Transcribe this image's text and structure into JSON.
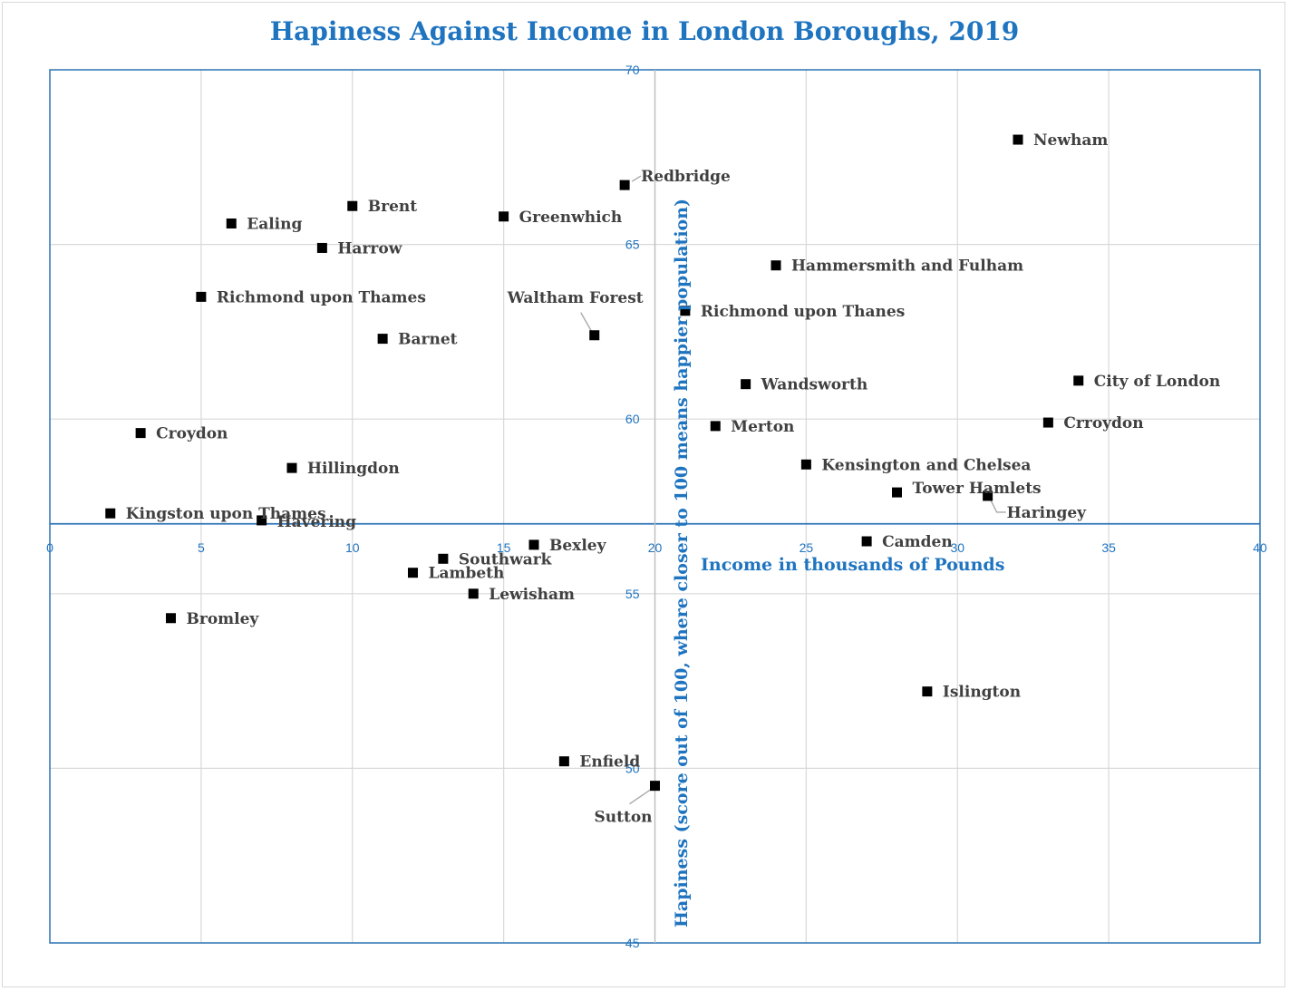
{
  "chart_data": {
    "type": "scatter",
    "title": "Hapiness Against Income in London Boroughs, 2019",
    "xlabel": "Income in thousands of Pounds",
    "ylabel": "Hapiness (score out of 100, where closer to 100 means happier population)",
    "xlim": [
      0,
      40
    ],
    "ylim": [
      45,
      70
    ],
    "x_ticks": [
      "0",
      "5",
      "10",
      "15",
      "20",
      "25",
      "30",
      "35",
      "40"
    ],
    "y_ticks": [
      "45",
      "50",
      "55",
      "60",
      "65",
      "70"
    ],
    "x_axis_crosses_y": 57,
    "y_axis_crosses_x": 20,
    "grid": "horizontal",
    "marker": "square",
    "colors": {
      "accent": "#1f74c0",
      "marker": "#000000",
      "label": "#404040",
      "grid": "#d9d9d9"
    },
    "points": [
      {
        "label": "Newham",
        "x": 32,
        "y": 68
      },
      {
        "label": "Redbridge",
        "x": 19,
        "y": 66.7
      },
      {
        "label": "Brent",
        "x": 10,
        "y": 66.1
      },
      {
        "label": "Greenwhich",
        "x": 15,
        "y": 65.8
      },
      {
        "label": "Ealing",
        "x": 6,
        "y": 65.6
      },
      {
        "label": "Harrow",
        "x": 9,
        "y": 64.9
      },
      {
        "label": "Hammersmith and Fulham",
        "x": 24,
        "y": 64.4
      },
      {
        "label": "Richmond upon Thames",
        "x": 5,
        "y": 63.5
      },
      {
        "label": "Richmond upon Thanes",
        "x": 21,
        "y": 63.1
      },
      {
        "label": "Barnet",
        "x": 11,
        "y": 62.3
      },
      {
        "label": "Waltham Forest",
        "x": 18,
        "y": 62.4
      },
      {
        "label": "City of London",
        "x": 34,
        "y": 61.1
      },
      {
        "label": "Wandsworth",
        "x": 23,
        "y": 61
      },
      {
        "label": "Merton",
        "x": 22,
        "y": 59.8
      },
      {
        "label": "Crroydon",
        "x": 33,
        "y": 59.9
      },
      {
        "label": "Croydon",
        "x": 3,
        "y": 59.6
      },
      {
        "label": "Kensington and Chelsea",
        "x": 25,
        "y": 58.7
      },
      {
        "label": "Hillingdon",
        "x": 8,
        "y": 58.6
      },
      {
        "label": "Tower Hamlets",
        "x": 28,
        "y": 57.9
      },
      {
        "label": "Haringey",
        "x": 31,
        "y": 57.8
      },
      {
        "label": "Kingston upon Thames",
        "x": 2,
        "y": 57.3
      },
      {
        "label": "Havering",
        "x": 7,
        "y": 57.1
      },
      {
        "label": "Camden",
        "x": 27,
        "y": 56.5
      },
      {
        "label": "Bexley",
        "x": 16,
        "y": 56.4
      },
      {
        "label": "Southwark",
        "x": 13,
        "y": 56
      },
      {
        "label": "Lambeth",
        "x": 12,
        "y": 55.6
      },
      {
        "label": "Lewisham",
        "x": 14,
        "y": 55
      },
      {
        "label": "Bromley",
        "x": 4,
        "y": 54.3
      },
      {
        "label": "Islington",
        "x": 29,
        "y": 52.2
      },
      {
        "label": "Enfield",
        "x": 17,
        "y": 50.2
      },
      {
        "label": "Sutton",
        "x": 20,
        "y": 49.5
      }
    ]
  }
}
